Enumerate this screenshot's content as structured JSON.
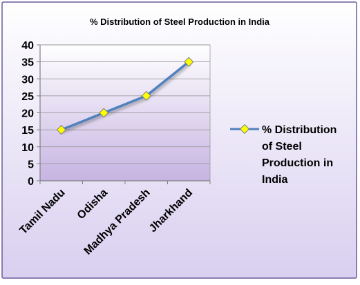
{
  "chart_data": {
    "type": "line",
    "title": "% Distribution of Steel Production in India",
    "categories": [
      "Tamil Nadu",
      "Odisha",
      "Madhya Pradesh",
      "Jharkhand"
    ],
    "series": [
      {
        "name": "% Distribution of Steel Production in India",
        "values": [
          15,
          20,
          25,
          35
        ]
      }
    ],
    "ylim": [
      0,
      40
    ],
    "yticks": [
      "0",
      "5",
      "10",
      "15",
      "20",
      "25",
      "30",
      "35",
      "40"
    ],
    "grid": true,
    "legend": "right"
  },
  "colors": {
    "line": "#4F81BD",
    "marker_fill": "#FFFF00",
    "marker_stroke": "#7F7F7F",
    "plot_top": "#FFFFFF",
    "plot_bottom": "#C7B4E2",
    "frame_border": "#6A5A9A"
  }
}
